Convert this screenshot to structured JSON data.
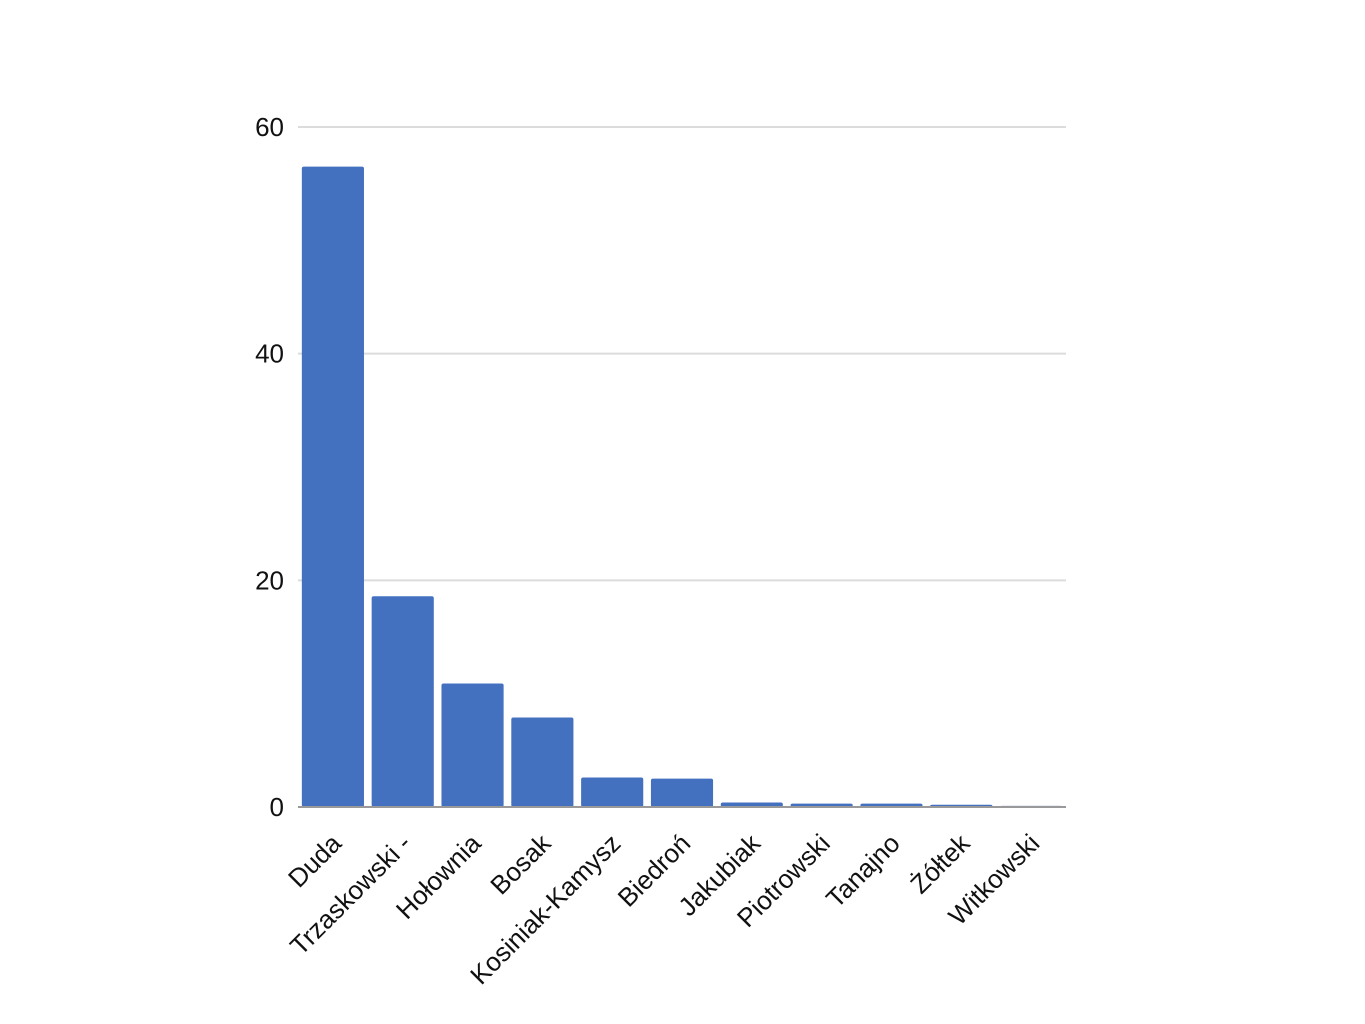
{
  "chart_data": {
    "type": "bar",
    "categories": [
      "Duda",
      "Trzaskowski -",
      "Hołownia",
      "Bosak",
      "Kosiniak-Kamysz",
      "Biedroń",
      "Jakubiak",
      "Piotrowski",
      "Tanajno",
      "Żółtek",
      "Witkowski"
    ],
    "values": [
      56.5,
      18.6,
      10.9,
      7.9,
      2.6,
      2.5,
      0.4,
      0.3,
      0.3,
      0.2,
      0.1
    ],
    "color": "#4470c0",
    "ylim": [
      0,
      60
    ],
    "yticks": [
      0,
      20,
      40,
      60
    ],
    "grid": true
  }
}
